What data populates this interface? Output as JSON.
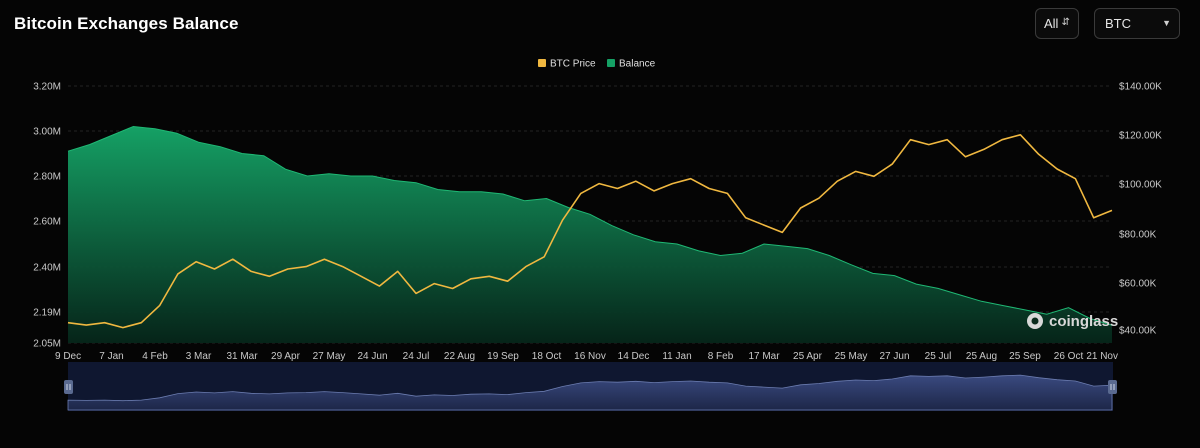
{
  "header": {
    "title": "Bitcoin Exchanges Balance",
    "range_select": "All",
    "asset_select": "BTC"
  },
  "watermark": "coinglass",
  "colors": {
    "price_line": "#f0b840",
    "balance_fill_top": "#15a165",
    "balance_fill_bottom": "#06261a",
    "navigator_fill": "#27345e",
    "background": "#050505"
  },
  "chart_data": {
    "type": "area",
    "title": "Bitcoin Exchanges Balance",
    "legend": [
      "BTC Price",
      "Balance"
    ],
    "legend_position": "top-center",
    "grid": true,
    "x_ticks": [
      "9 Dec",
      "7 Jan",
      "4 Feb",
      "3 Mar",
      "31 Mar",
      "29 Apr",
      "27 May",
      "24 Jun",
      "24 Jul",
      "22 Aug",
      "19 Sep",
      "18 Oct",
      "16 Nov",
      "14 Dec",
      "11 Jan",
      "8 Feb",
      "17 Mar",
      "25 Apr",
      "25 May",
      "27 Jun",
      "25 Jul",
      "25 Aug",
      "25 Sep",
      "26 Oct",
      "21 Nov"
    ],
    "y_left_ticks": [
      "2.05M",
      "2.19M",
      "2.40M",
      "2.60M",
      "2.80M",
      "3.00M",
      "3.20M"
    ],
    "y_right_ticks": [
      "$40.00K",
      "$60.00K",
      "$80.00K",
      "$100.00K",
      "$120.00K",
      "$140.00K"
    ],
    "y_left_range": [
      2.05,
      3.2
    ],
    "y_right_range": [
      37,
      142
    ],
    "series": [
      {
        "name": "Balance",
        "axis": "left",
        "unit": "M BTC",
        "values": [
          2.91,
          2.94,
          2.98,
          3.02,
          3.01,
          2.99,
          2.95,
          2.93,
          2.9,
          2.89,
          2.83,
          2.8,
          2.81,
          2.8,
          2.8,
          2.78,
          2.77,
          2.74,
          2.73,
          2.73,
          2.72,
          2.69,
          2.7,
          2.66,
          2.63,
          2.58,
          2.54,
          2.51,
          2.5,
          2.47,
          2.45,
          2.46,
          2.5,
          2.49,
          2.48,
          2.45,
          2.41,
          2.37,
          2.36,
          2.32,
          2.3,
          2.27,
          2.24,
          2.22,
          2.2,
          2.18,
          2.21,
          2.16,
          2.13
        ]
      },
      {
        "name": "BTC Price",
        "axis": "right",
        "unit": "$K",
        "values": [
          43,
          42,
          43,
          41,
          43,
          50,
          63,
          68,
          65,
          69,
          64,
          62,
          65,
          66,
          69,
          66,
          62,
          58,
          64,
          55,
          59,
          57,
          61,
          62,
          60,
          66,
          70,
          85,
          96,
          100,
          98,
          101,
          97,
          100,
          102,
          98,
          96,
          86,
          83,
          80,
          90,
          94,
          101,
          105,
          103,
          108,
          118,
          116,
          118,
          111,
          114,
          118,
          120,
          112,
          106,
          102,
          86,
          89
        ]
      }
    ]
  }
}
